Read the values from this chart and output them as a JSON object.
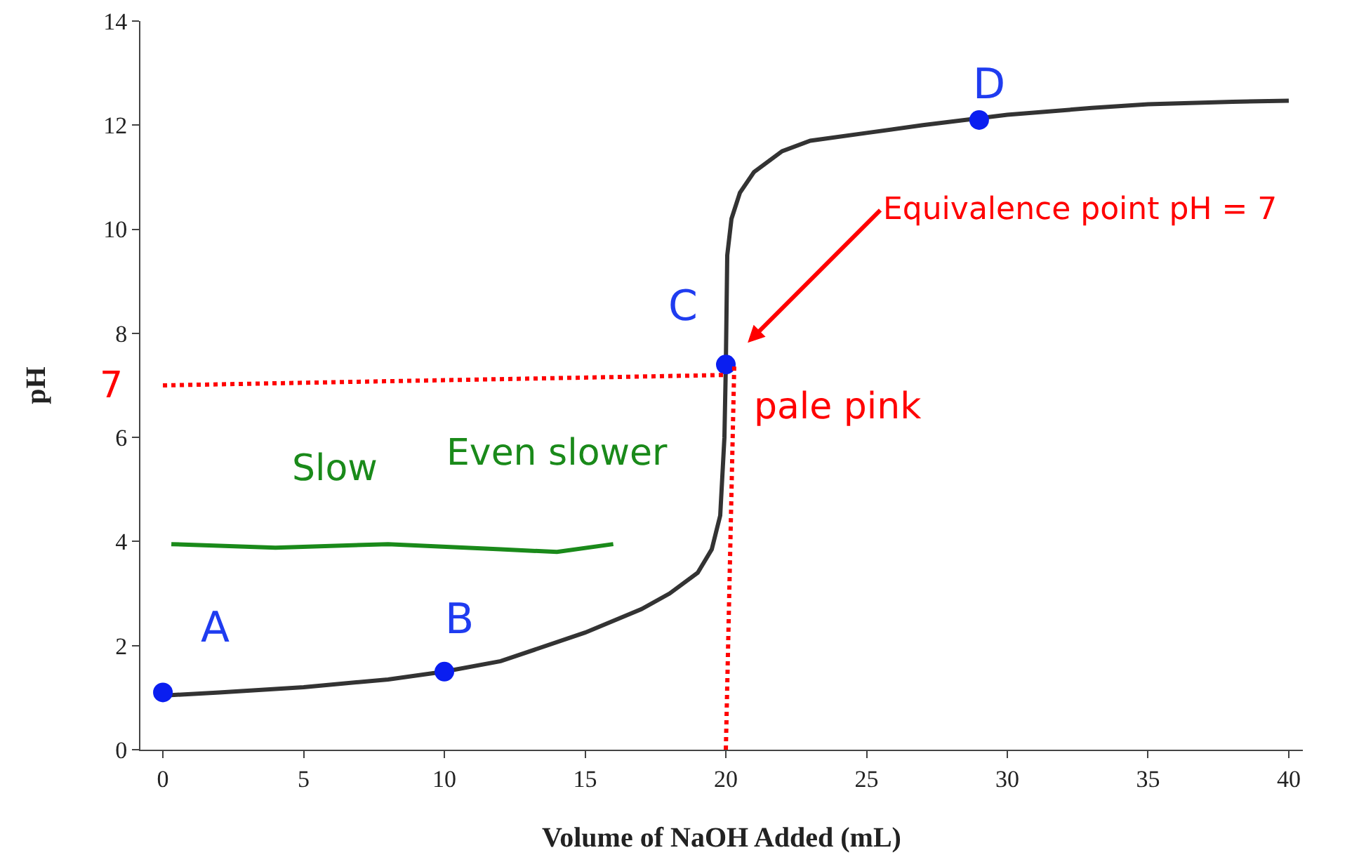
{
  "chart_data": {
    "type": "line",
    "xlabel": "Volume of NaOH Added (mL)",
    "ylabel": "pH",
    "xlim": [
      -0.8,
      40.5
    ],
    "xticks": [
      0,
      5,
      10,
      15,
      20,
      25,
      30,
      35,
      40
    ],
    "ylim": [
      0,
      14
    ],
    "yticks": [
      0,
      2,
      4,
      6,
      8,
      10,
      12,
      14
    ],
    "series": [
      {
        "color": "#333333",
        "line_style": "solid",
        "marker": "none",
        "x": [
          0,
          2,
          5,
          8,
          10,
          12,
          15,
          17,
          18,
          19,
          19.5,
          19.8,
          19.95,
          20,
          20.05,
          20.2,
          20.5,
          21,
          22,
          23,
          25,
          27,
          30,
          33,
          35,
          38,
          40
        ],
        "values": [
          1.04,
          1.1,
          1.2,
          1.35,
          1.5,
          1.7,
          2.25,
          2.7,
          3.0,
          3.4,
          3.85,
          4.5,
          6,
          7.4,
          9.5,
          10.2,
          10.7,
          11.1,
          11.5,
          11.7,
          11.85,
          12.0,
          12.2,
          12.33,
          12.4,
          12.45,
          12.47
        ]
      },
      {
        "type": "scatter",
        "color": "#0a1ef0",
        "marker": "circle",
        "x": [
          0,
          10,
          20,
          29
        ],
        "values": [
          1.1,
          1.5,
          7.4,
          12.1
        ]
      },
      {
        "color": "#ff0000",
        "line_style": "dotted",
        "marker": "none",
        "x": [
          0,
          20
        ],
        "values": [
          7,
          7.2
        ]
      },
      {
        "color": "#ff0000",
        "line_style": "dotted",
        "marker": "none",
        "x": [
          20,
          20.3
        ],
        "values": [
          0,
          7.4
        ]
      },
      {
        "color": "#1a8a1a",
        "line_style": "solid",
        "marker": "none",
        "x": [
          0.3,
          4,
          8,
          12,
          14,
          16
        ],
        "values": [
          3.95,
          3.88,
          3.95,
          3.85,
          3.8,
          3.95
        ]
      }
    ],
    "annotations": [
      "A",
      "B",
      "C",
      "D",
      "Slow",
      "Even slower",
      "pale pink",
      {
        "text": "Equivalence point pH = 7",
        "x": 20,
        "y": 7.4
      },
      "7"
    ]
  }
}
